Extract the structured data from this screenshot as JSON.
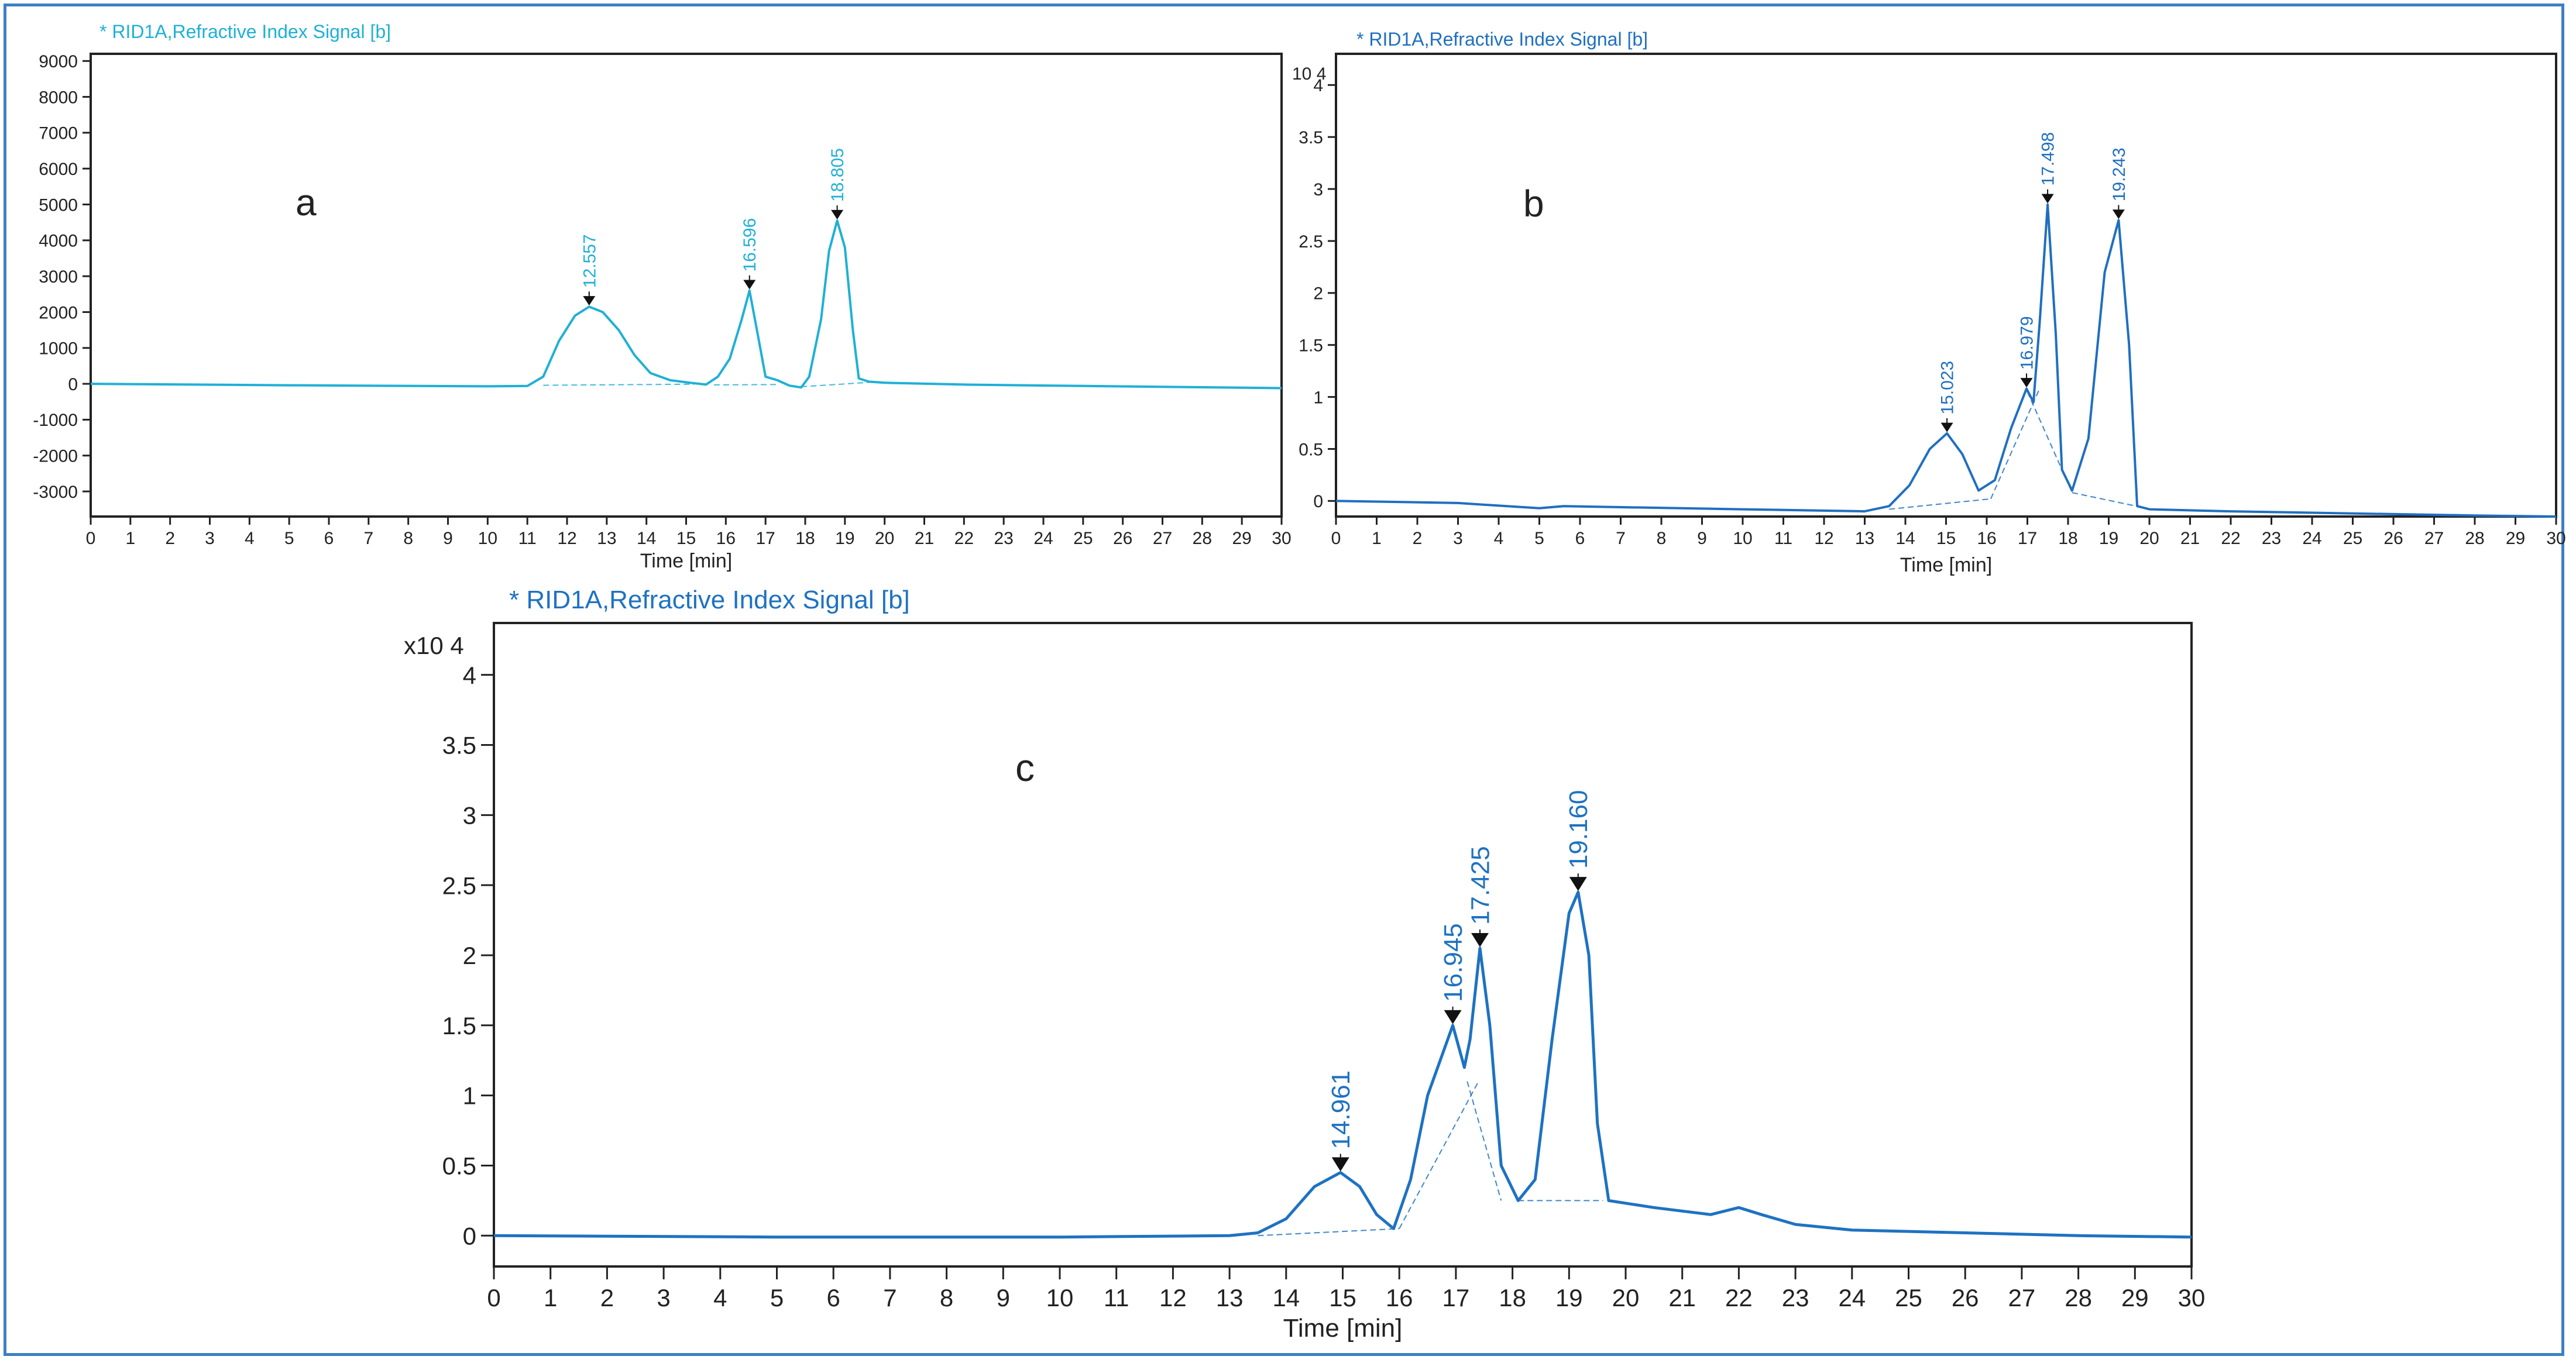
{
  "colors": {
    "frame": "#3d7fc4",
    "series_a": "#1fb0d6",
    "series_b": "#1f6fc0",
    "series_c": "#1e72c2",
    "axis": "#222222",
    "marker": "#111111"
  },
  "chart_data": [
    {
      "id": "a",
      "type": "line",
      "panel_label": "a",
      "title": "* RID1A,Refractive Index Signal [b]",
      "xlabel": "Time [min]",
      "ylabel": "",
      "y_multiplier": "",
      "xlim": [
        0,
        30
      ],
      "ylim": [
        -3700,
        9200
      ],
      "xticks": [
        0,
        1,
        2,
        3,
        4,
        5,
        6,
        7,
        8,
        9,
        10,
        11,
        12,
        13,
        14,
        15,
        16,
        17,
        18,
        19,
        20,
        21,
        22,
        23,
        24,
        25,
        26,
        27,
        28,
        29,
        30
      ],
      "yticks": [
        9000,
        8000,
        7000,
        6000,
        5000,
        4000,
        3000,
        2000,
        1000,
        0,
        -1000,
        -2000,
        -3000
      ],
      "grid": false,
      "signal": {
        "x": [
          0,
          5,
          10,
          11,
          11.4,
          11.8,
          12.2,
          12.557,
          12.9,
          13.3,
          13.7,
          14.1,
          14.6,
          15.1,
          15.5,
          15.8,
          16.1,
          16.4,
          16.596,
          16.8,
          17.0,
          17.3,
          17.6,
          17.9,
          18.1,
          18.4,
          18.6,
          18.805,
          19.0,
          19.2,
          19.35,
          19.6,
          20.0,
          22,
          25,
          30
        ],
        "y": [
          0,
          -40,
          -70,
          -60,
          200,
          1200,
          1900,
          2150,
          2000,
          1500,
          800,
          300,
          100,
          30,
          -20,
          200,
          700,
          1800,
          2600,
          1400,
          200,
          100,
          -50,
          -100,
          200,
          1800,
          3700,
          4550,
          3800,
          1500,
          150,
          60,
          30,
          -20,
          -60,
          -120
        ]
      },
      "baselines": [
        {
          "x": [
            11.4,
            15.2
          ],
          "y": [
            -40,
            -10
          ]
        },
        {
          "x": [
            15.7,
            17.3
          ],
          "y": [
            -30,
            -20
          ]
        },
        {
          "x": [
            17.9,
            19.6
          ],
          "y": [
            -80,
            40
          ]
        }
      ],
      "peaks": [
        {
          "label": "12.557",
          "x": 12.557,
          "y": 2150
        },
        {
          "label": "16.596",
          "x": 16.596,
          "y": 2600
        },
        {
          "label": "18.805",
          "x": 18.805,
          "y": 4550
        }
      ]
    },
    {
      "id": "b",
      "type": "line",
      "panel_label": "b",
      "title": "* RID1A,Refractive Index Signal [b]",
      "xlabel": "Time [min]",
      "ylabel": "",
      "y_multiplier": "10 4",
      "xlim": [
        0,
        30
      ],
      "ylim": [
        -0.15,
        4.3
      ],
      "xticks": [
        0,
        1,
        2,
        3,
        4,
        5,
        6,
        7,
        8,
        9,
        10,
        11,
        12,
        13,
        14,
        15,
        16,
        17,
        18,
        19,
        20,
        21,
        22,
        23,
        24,
        25,
        26,
        27,
        28,
        29,
        30
      ],
      "yticks": [
        4,
        3.5,
        3,
        2.5,
        2,
        1.5,
        1,
        0.5,
        0
      ],
      "ytick_labels": [
        "4",
        "3.5",
        "3",
        "2.5",
        "2",
        "1.5",
        "1",
        "0.5",
        "0"
      ],
      "grid": false,
      "signal": {
        "x": [
          0,
          3,
          5,
          5.6,
          7,
          10,
          13,
          13.6,
          14.1,
          14.6,
          15.023,
          15.4,
          15.8,
          16.2,
          16.6,
          16.979,
          17.15,
          17.3,
          17.498,
          17.7,
          17.85,
          18.1,
          18.5,
          18.9,
          19.243,
          19.5,
          19.7,
          20,
          22,
          25,
          28,
          30
        ],
        "y": [
          0,
          -0.02,
          -0.07,
          -0.05,
          -0.06,
          -0.08,
          -0.1,
          -0.05,
          0.15,
          0.5,
          0.65,
          0.45,
          0.1,
          0.2,
          0.7,
          1.08,
          0.95,
          1.7,
          2.85,
          1.6,
          0.3,
          0.1,
          0.6,
          2.2,
          2.7,
          1.5,
          -0.05,
          -0.08,
          -0.1,
          -0.12,
          -0.14,
          -0.15
        ]
      },
      "baselines": [
        {
          "x": [
            13.6,
            16.1
          ],
          "y": [
            -0.08,
            0.02
          ]
        },
        {
          "x": [
            16.1,
            17.3
          ],
          "y": [
            0.02,
            1.08
          ]
        },
        {
          "x": [
            17.0,
            18.1
          ],
          "y": [
            1.05,
            0.08
          ]
        },
        {
          "x": [
            18.1,
            19.8
          ],
          "y": [
            0.08,
            -0.06
          ]
        }
      ],
      "peaks": [
        {
          "label": "15.023",
          "x": 15.023,
          "y": 0.65
        },
        {
          "label": "16.979",
          "x": 16.979,
          "y": 1.08
        },
        {
          "label": "17.498",
          "x": 17.498,
          "y": 2.85
        },
        {
          "label": "19.243",
          "x": 19.243,
          "y": 2.7
        }
      ]
    },
    {
      "id": "c",
      "type": "line",
      "panel_label": "c",
      "title": "* RID1A,Refractive Index Signal [b]",
      "xlabel": "Time [min]",
      "ylabel": "",
      "y_multiplier": "x10 4",
      "xlim": [
        0,
        30
      ],
      "ylim": [
        -0.22,
        4.37
      ],
      "xticks": [
        0,
        1,
        2,
        3,
        4,
        5,
        6,
        7,
        8,
        9,
        10,
        11,
        12,
        13,
        14,
        15,
        16,
        17,
        18,
        19,
        20,
        21,
        22,
        23,
        24,
        25,
        26,
        27,
        28,
        29,
        30
      ],
      "yticks": [
        4,
        3.5,
        3,
        2.5,
        2,
        1.5,
        1,
        0.5,
        0
      ],
      "ytick_labels": [
        "4",
        "3.5",
        "3",
        "2.5",
        "2",
        "1.5",
        "1",
        "0.5",
        "0"
      ],
      "grid": false,
      "signal": {
        "x": [
          0,
          5,
          10,
          13,
          13.5,
          14,
          14.5,
          14.961,
          15.3,
          15.6,
          15.9,
          16.2,
          16.5,
          16.945,
          17.15,
          17.25,
          17.425,
          17.6,
          17.8,
          18.1,
          18.4,
          18.7,
          19.0,
          19.16,
          19.35,
          19.5,
          19.7,
          20.5,
          21.5,
          21.8,
          22.0,
          22.4,
          23,
          24,
          26,
          28,
          30
        ],
        "y": [
          0,
          -0.01,
          -0.01,
          0,
          0.02,
          0.12,
          0.35,
          0.45,
          0.35,
          0.15,
          0.05,
          0.4,
          1.0,
          1.5,
          1.2,
          1.4,
          2.05,
          1.5,
          0.5,
          0.25,
          0.4,
          1.4,
          2.3,
          2.45,
          2.0,
          0.8,
          0.25,
          0.2,
          0.15,
          0.18,
          0.2,
          0.15,
          0.08,
          0.04,
          0.02,
          0.0,
          -0.01
        ]
      },
      "baselines": [
        {
          "x": [
            13.5,
            16.0
          ],
          "y": [
            0.0,
            0.05
          ]
        },
        {
          "x": [
            16.0,
            17.4
          ],
          "y": [
            0.05,
            1.1
          ]
        },
        {
          "x": [
            17.2,
            17.8
          ],
          "y": [
            1.1,
            0.25
          ]
        },
        {
          "x": [
            18.1,
            19.6
          ],
          "y": [
            0.25,
            0.25
          ]
        }
      ],
      "peaks": [
        {
          "label": "14.961",
          "x": 14.961,
          "y": 0.45
        },
        {
          "label": "16.945",
          "x": 16.945,
          "y": 1.5
        },
        {
          "label": "17.425",
          "x": 17.425,
          "y": 2.05
        },
        {
          "label": "19.160",
          "x": 19.16,
          "y": 2.45
        }
      ]
    }
  ]
}
